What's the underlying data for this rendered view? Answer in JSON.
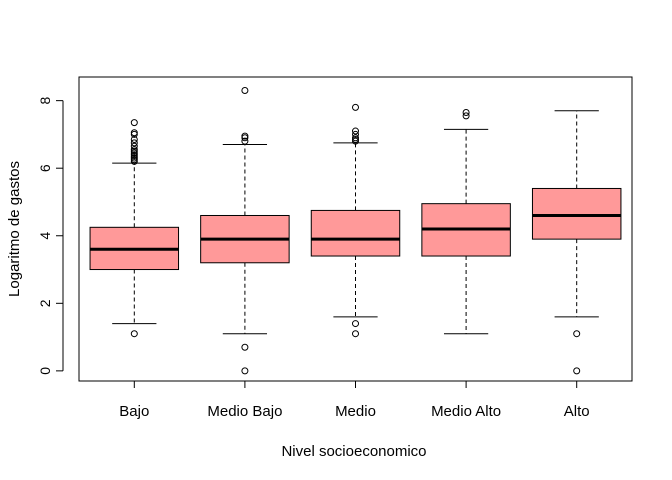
{
  "chart_data": {
    "type": "boxplot",
    "xlabel": "Nivel socioeconomico",
    "ylabel": "Logaritmo de gastos",
    "ylim": [
      -0.3,
      8.7
    ],
    "yticks": [
      0,
      2,
      4,
      6,
      8
    ],
    "grid": false,
    "box_color": "#ff9999",
    "categories": [
      "Bajo",
      "Medio Bajo",
      "Medio",
      "Medio Alto",
      "Alto"
    ],
    "boxes": [
      {
        "category": "Bajo",
        "whisker_low": 1.4,
        "q1": 3.0,
        "median": 3.6,
        "q3": 4.25,
        "whisker_high": 6.15,
        "outliers": [
          1.1,
          6.2,
          6.25,
          6.3,
          6.35,
          6.4,
          6.45,
          6.5,
          6.55,
          6.65,
          6.75,
          6.85,
          7.0,
          7.05,
          7.35
        ]
      },
      {
        "category": "Medio Bajo",
        "whisker_low": 1.1,
        "q1": 3.2,
        "median": 3.9,
        "q3": 4.6,
        "whisker_high": 6.7,
        "outliers": [
          0.0,
          0.7,
          6.8,
          6.9,
          6.95,
          8.3
        ]
      },
      {
        "category": "Medio",
        "whisker_low": 1.6,
        "q1": 3.4,
        "median": 3.9,
        "q3": 4.75,
        "whisker_high": 6.75,
        "outliers": [
          1.1,
          1.4,
          6.8,
          6.85,
          6.9,
          7.0,
          7.1,
          7.8
        ]
      },
      {
        "category": "Medio Alto",
        "whisker_low": 1.1,
        "q1": 3.4,
        "median": 4.2,
        "q3": 4.95,
        "whisker_high": 7.15,
        "outliers": [
          7.55,
          7.65
        ]
      },
      {
        "category": "Alto",
        "whisker_low": 1.6,
        "q1": 3.9,
        "median": 4.6,
        "q3": 5.4,
        "whisker_high": 7.7,
        "outliers": [
          0.0,
          1.1
        ]
      }
    ]
  }
}
